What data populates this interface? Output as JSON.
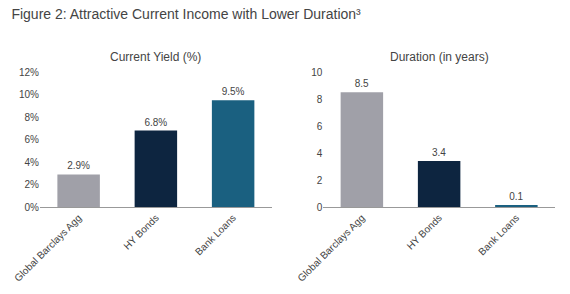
{
  "title": "Figure 2: Attractive Current Income with Lower Duration³",
  "chart_data": [
    {
      "type": "bar",
      "title": "Current Yield (%)",
      "categories": [
        "Global Barclays Agg",
        "HY Bonds",
        "Bank Loans"
      ],
      "values": [
        0.029,
        0.068,
        0.095
      ],
      "value_labels": [
        "2.9%",
        "6.8%",
        "9.5%"
      ],
      "data_labels": true,
      "colors": [
        "#a0a0a8",
        "#0d2540",
        "#1a6080"
      ],
      "ylim": [
        0,
        0.12
      ],
      "yticks": [
        {
          "value": 0,
          "label": "0%"
        },
        {
          "value": 0.02,
          "label": "2%"
        },
        {
          "value": 0.04,
          "label": "4%"
        },
        {
          "value": 0.06,
          "label": "6%"
        },
        {
          "value": 0.08,
          "label": "8%"
        },
        {
          "value": 0.1,
          "label": "10%"
        },
        {
          "value": 0.12,
          "label": "12%"
        }
      ],
      "grid": false
    },
    {
      "type": "bar",
      "title": "Duration (in years)",
      "categories": [
        "Global Barclays Agg",
        "HY Bonds",
        "Bank Loans"
      ],
      "values": [
        8.5,
        3.4,
        0.1
      ],
      "data_labels": true,
      "colors": [
        "#a0a0a8",
        "#0d2540",
        "#1a6080"
      ],
      "ylim": [
        0,
        10
      ],
      "yticks": [
        0,
        2,
        4,
        6,
        8,
        10
      ],
      "grid": false
    }
  ]
}
